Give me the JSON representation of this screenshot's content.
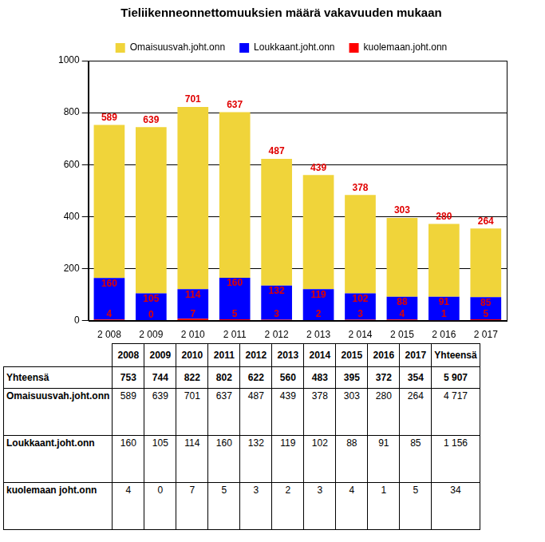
{
  "chart_data": {
    "type": "bar",
    "title": "Tieliikenneonnettomuuksien määrä vakavuuden mukaan",
    "categories": [
      "2 008",
      "2 009",
      "2 010",
      "2 011",
      "2 012",
      "2 013",
      "2 014",
      "2 015",
      "2 016",
      "2 017"
    ],
    "series": [
      {
        "name": "kuolemaan.joht.onn",
        "color": "#ff0000",
        "values": [
          4,
          0,
          7,
          5,
          3,
          2,
          3,
          4,
          1,
          5
        ]
      },
      {
        "name": "Loukkaant.joht.onn",
        "color": "#0000ff",
        "values": [
          160,
          105,
          114,
          160,
          132,
          119,
          102,
          88,
          91,
          85
        ]
      },
      {
        "name": "Omaisuusvah.joht.onn",
        "color": "#f0d43a",
        "values": [
          589,
          639,
          701,
          637,
          487,
          439,
          378,
          303,
          280,
          264
        ]
      }
    ],
    "stacked": true,
    "data_labels": true,
    "legend": "top",
    "grid": true,
    "ylim": [
      0,
      1000
    ],
    "yticks": [
      0,
      200,
      400,
      600,
      800,
      1000
    ]
  },
  "table": {
    "header": [
      "",
      "2008",
      "2009",
      "2010",
      "2011",
      "2012",
      "2013",
      "2014",
      "2015",
      "2016",
      "2017",
      "Yhteensä"
    ],
    "rows": [
      [
        "Yhteensä",
        "753",
        "744",
        "822",
        "802",
        "622",
        "560",
        "483",
        "395",
        "372",
        "354",
        "5 907"
      ],
      [
        "Omaisuusvah.joht.onn",
        "589",
        "639",
        "701",
        "637",
        "487",
        "439",
        "378",
        "303",
        "280",
        "264",
        "4 717"
      ],
      [
        "Loukkaant.joht.onn",
        "160",
        "105",
        "114",
        "160",
        "132",
        "119",
        "102",
        "88",
        "91",
        "85",
        "1 156"
      ],
      [
        "kuolemaan joht.onn",
        "4",
        "0",
        "7",
        "5",
        "3",
        "2",
        "3",
        "4",
        "1",
        "5",
        "34"
      ]
    ]
  }
}
